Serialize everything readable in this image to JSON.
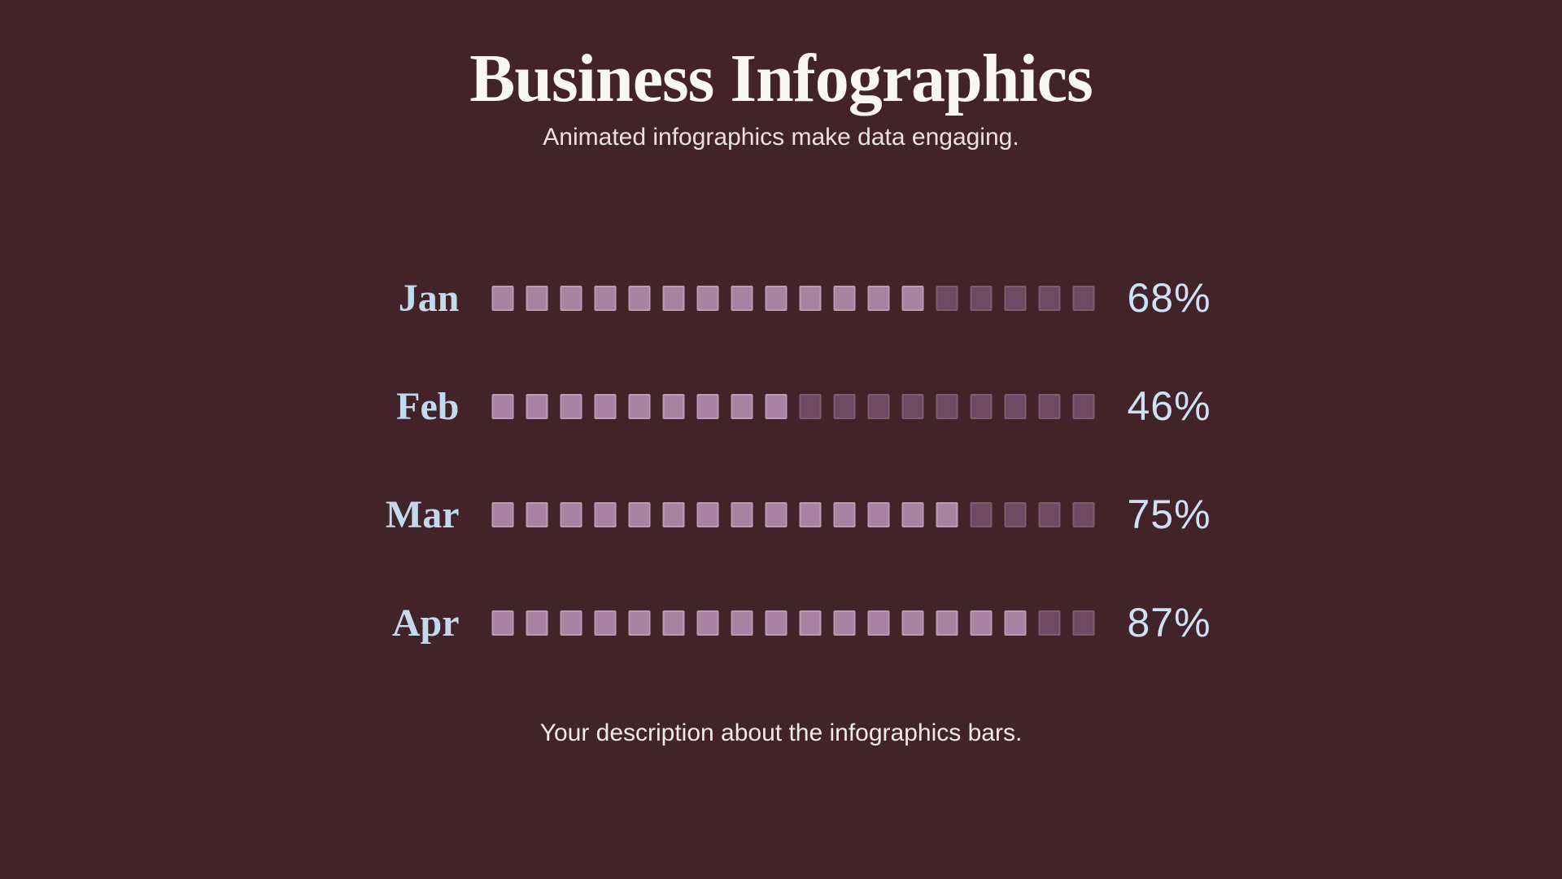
{
  "page": {
    "title": "Business Infographics",
    "subtitle": "Animated infographics make data engaging.",
    "description": "Your description about the infographics bars."
  },
  "colors": {
    "background": "#42232a",
    "square_filled": "#a981a1",
    "square_empty": "#6f4a62",
    "label_text": "#c3daee",
    "percent_text": "#cfe2f3",
    "title_text": "#faf6f3",
    "subtitle_text": "#e9e2e0",
    "description_text": "#f0eae8"
  },
  "chart_data": {
    "type": "bar",
    "orientation": "horizontal",
    "title": "Business Infographics",
    "subtitle": "Animated infographics make data engaging.",
    "caption": "Your description about the infographics bars.",
    "categories": [
      "Jan",
      "Feb",
      "Mar",
      "Apr"
    ],
    "values": [
      68,
      46,
      75,
      87
    ],
    "unit": "%",
    "value_labels": [
      "68%",
      "46%",
      "75%",
      "87%"
    ],
    "xlim": [
      0,
      100
    ],
    "legend": false,
    "grid": false,
    "squares_per_row": 18,
    "filled_squares": [
      13,
      9,
      14,
      16
    ]
  },
  "rows": [
    {
      "label": "Jan",
      "percent_label": "68%",
      "value": 68,
      "filled": 13,
      "total": 18
    },
    {
      "label": "Feb",
      "percent_label": "46%",
      "value": 46,
      "filled": 9,
      "total": 18
    },
    {
      "label": "Mar",
      "percent_label": "75%",
      "value": 75,
      "filled": 14,
      "total": 18
    },
    {
      "label": "Apr",
      "percent_label": "87%",
      "value": 87,
      "filled": 16,
      "total": 18
    }
  ]
}
